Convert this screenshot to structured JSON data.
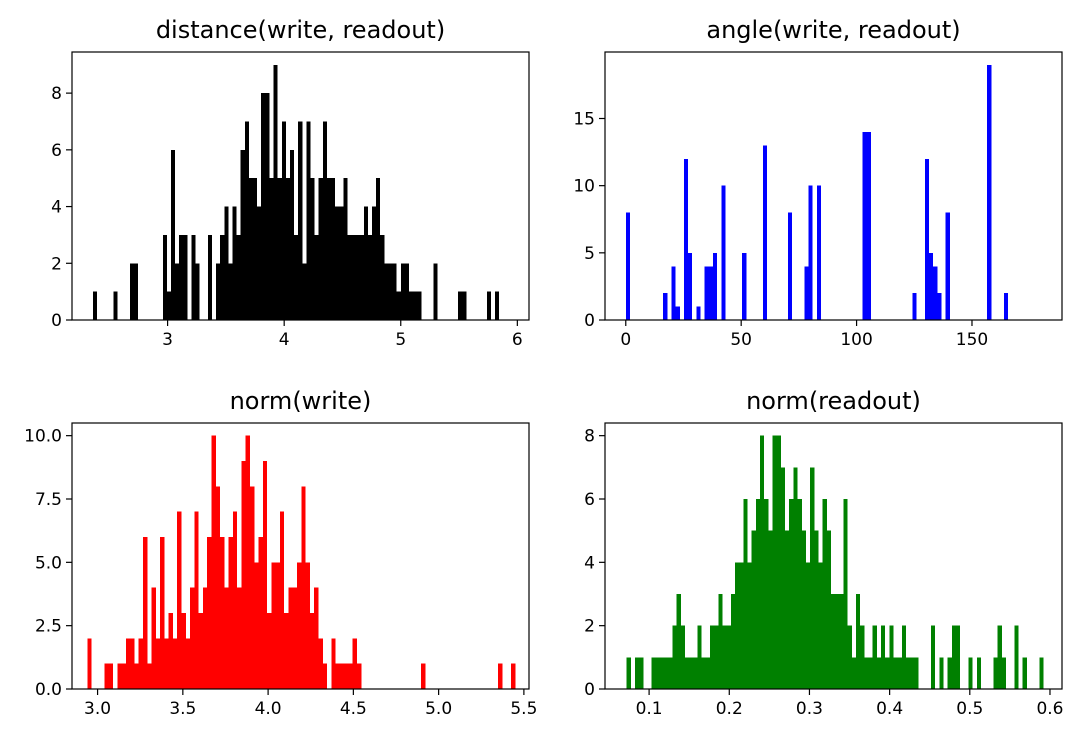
{
  "chart_data": [
    {
      "type": "bar",
      "title": "distance(write, readout)",
      "xlabel": "",
      "ylabel": "",
      "color": "#000000",
      "xlim": [
        2.18,
        6.1
      ],
      "ylim": [
        0,
        9.45
      ],
      "xticks": [
        3,
        4,
        5,
        6
      ],
      "yticks": [
        0,
        2,
        4,
        6,
        8
      ],
      "xtick_labels": [
        "3",
        "4",
        "5",
        "6"
      ],
      "ytick_labels": [
        "0",
        "2",
        "4",
        "6",
        "8"
      ],
      "bins": {
        "start": 2.36,
        "width": 0.0352,
        "count": 100
      },
      "values": [
        1,
        0,
        0,
        0,
        0,
        1,
        0,
        0,
        0,
        2,
        2,
        0,
        0,
        0,
        0,
        0,
        0,
        3,
        1,
        6,
        2,
        3,
        3,
        0,
        3,
        2,
        0,
        0,
        3,
        0,
        2,
        3,
        4,
        2,
        4,
        3,
        6,
        7,
        5,
        5,
        4,
        8,
        8,
        5,
        9,
        5,
        7,
        5,
        6,
        3,
        7,
        2,
        7,
        5,
        3,
        5,
        7,
        5,
        5,
        4,
        4,
        5,
        3,
        3,
        3,
        3,
        4,
        3,
        4,
        5,
        3,
        2,
        2,
        2,
        1,
        2,
        2,
        1,
        1,
        1,
        0,
        0,
        0,
        2,
        0,
        0,
        0,
        0,
        0,
        1,
        1,
        0,
        0,
        0,
        0,
        0,
        1,
        0,
        1,
        0
      ]
    },
    {
      "type": "bar",
      "title": "angle(write, readout)",
      "xlabel": "",
      "ylabel": "",
      "color": "#0000ff",
      "xlim": [
        -9,
        189
      ],
      "ylim": [
        0,
        19.95
      ],
      "xticks": [
        0,
        50,
        100,
        150
      ],
      "yticks": [
        0,
        5,
        10,
        15
      ],
      "xtick_labels": [
        "0",
        "50",
        "100",
        "150"
      ],
      "ytick_labels": [
        "0",
        "5",
        "10",
        "15"
      ],
      "bins": {
        "start": 0,
        "width": 1.8,
        "count": 100
      },
      "values": [
        8,
        0,
        0,
        0,
        0,
        0,
        0,
        0,
        0,
        2,
        0,
        4,
        1,
        0,
        12,
        5,
        0,
        1,
        0,
        4,
        4,
        5,
        0,
        10,
        0,
        0,
        0,
        0,
        5,
        0,
        0,
        0,
        0,
        13,
        0,
        0,
        0,
        0,
        0,
        8,
        0,
        0,
        0,
        4,
        10,
        0,
        10,
        0,
        0,
        0,
        0,
        0,
        0,
        0,
        0,
        0,
        0,
        14,
        14,
        0,
        0,
        0,
        0,
        0,
        0,
        0,
        0,
        0,
        0,
        2,
        0,
        0,
        12,
        5,
        4,
        2,
        0,
        8,
        0,
        0,
        0,
        0,
        0,
        0,
        0,
        0,
        0,
        19,
        0,
        0,
        0,
        2,
        0,
        0,
        0,
        0,
        0,
        0,
        0,
        0
      ]
    },
    {
      "type": "bar",
      "title": "norm(write)",
      "xlabel": "",
      "ylabel": "",
      "color": "#ff0000",
      "xlim": [
        2.85,
        5.53
      ],
      "ylim": [
        0,
        10.5
      ],
      "xticks": [
        3.0,
        3.5,
        4.0,
        4.5,
        5.0,
        5.5
      ],
      "yticks": [
        0,
        2.5,
        5.0,
        7.5,
        10.0
      ],
      "xtick_labels": [
        "3.0",
        "3.5",
        "4.0",
        "4.5",
        "5.0",
        "5.5"
      ],
      "ytick_labels": [
        "0.0",
        "2.5",
        "5.0",
        "7.5",
        "10.0"
      ],
      "bins": {
        "start": 2.94,
        "width": 0.0251,
        "count": 100
      },
      "values": [
        2,
        0,
        0,
        0,
        1,
        1,
        0,
        1,
        1,
        2,
        2,
        1,
        2,
        6,
        1,
        4,
        2,
        6,
        2,
        3,
        2,
        7,
        3,
        2,
        4,
        7,
        3,
        4,
        6,
        10,
        8,
        6,
        4,
        6,
        7,
        4,
        9,
        10,
        8,
        5,
        6,
        9,
        3,
        5,
        5,
        7,
        3,
        4,
        4,
        5,
        8,
        5,
        3,
        4,
        2,
        1,
        0,
        2,
        1,
        1,
        1,
        1,
        2,
        1,
        0,
        0,
        0,
        0,
        0,
        0,
        0,
        0,
        0,
        0,
        0,
        0,
        0,
        0,
        1,
        0,
        0,
        0,
        0,
        0,
        0,
        0,
        0,
        0,
        0,
        0,
        0,
        0,
        0,
        0,
        0,
        0,
        1,
        0,
        0,
        1
      ]
    },
    {
      "type": "bar",
      "title": "norm(readout)",
      "xlabel": "",
      "ylabel": "",
      "color": "#008000",
      "xlim": [
        0.045,
        0.615
      ],
      "ylim": [
        0,
        8.4
      ],
      "xticks": [
        0.1,
        0.2,
        0.3,
        0.4,
        0.5,
        0.6
      ],
      "yticks": [
        0,
        2,
        4,
        6,
        8
      ],
      "xtick_labels": [
        "0.1",
        "0.2",
        "0.3",
        "0.4",
        "0.5",
        "0.6"
      ],
      "ytick_labels": [
        "0",
        "2",
        "4",
        "6",
        "8"
      ],
      "bins": {
        "start": 0.072,
        "width": 0.0052,
        "count": 100
      },
      "values": [
        1,
        0,
        1,
        1,
        0,
        0,
        1,
        1,
        1,
        1,
        1,
        2,
        3,
        2,
        1,
        1,
        1,
        2,
        1,
        1,
        2,
        2,
        3,
        2,
        2,
        3,
        4,
        4,
        6,
        4,
        5,
        6,
        8,
        6,
        5,
        8,
        8,
        7,
        5,
        6,
        7,
        6,
        5,
        4,
        7,
        5,
        4,
        6,
        5,
        3,
        3,
        3,
        6,
        2,
        1,
        3,
        2,
        1,
        1,
        2,
        1,
        2,
        1,
        2,
        1,
        1,
        2,
        1,
        1,
        1,
        0,
        0,
        0,
        2,
        0,
        1,
        0,
        1,
        2,
        2,
        0,
        0,
        1,
        0,
        1,
        0,
        0,
        0,
        1,
        2,
        1,
        0,
        0,
        2,
        0,
        1,
        0,
        0,
        0,
        1
      ]
    }
  ]
}
